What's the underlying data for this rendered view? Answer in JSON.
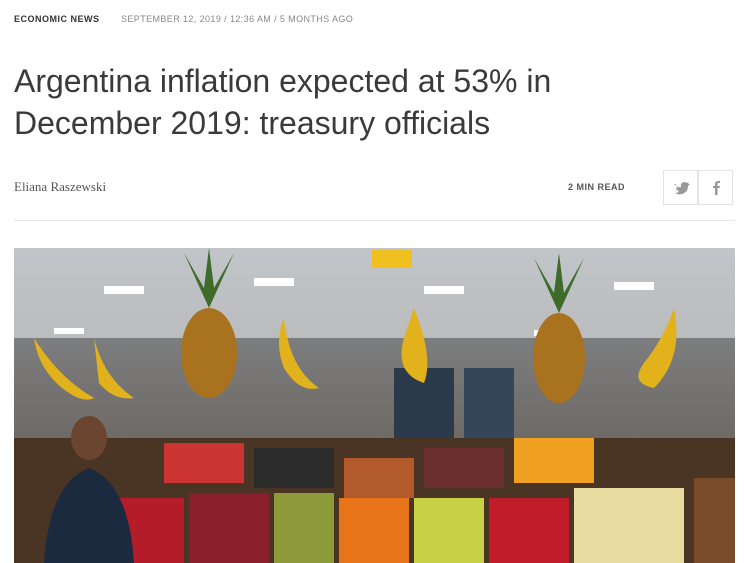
{
  "header": {
    "category": "ECONOMIC NEWS",
    "dateline": "SEPTEMBER 12, 2019 / 12:36 AM / 5 MONTHS AGO"
  },
  "article": {
    "title": "Argentina inflation expected at 53% in December 2019: treasury officials",
    "author": "Eliana Raszewski",
    "read_time": "2 MIN READ"
  }
}
